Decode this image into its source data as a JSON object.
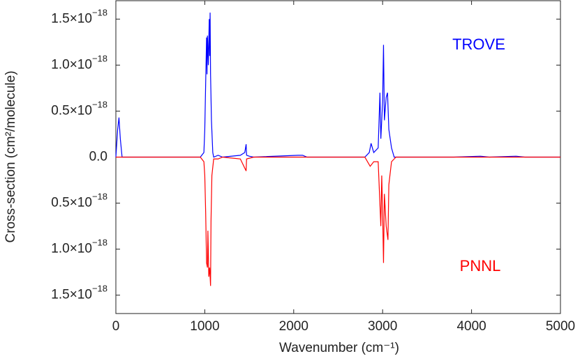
{
  "chart_data": {
    "type": "line",
    "xlabel": "Wavenumber (cm⁻¹)",
    "ylabel": "Cross-section (cm²/molecule)",
    "xlim": [
      0,
      5000
    ],
    "xticks": [
      0,
      1000,
      2000,
      3000,
      4000,
      5000
    ],
    "ylim": [
      -1.7e-18,
      1.7e-18
    ],
    "yticks": [
      {
        "value": 1.5e-18,
        "label": "1.5×10−18"
      },
      {
        "value": 1e-18,
        "label": "1.0×10−18"
      },
      {
        "value": 5e-19,
        "label": "0.5×10−18"
      },
      {
        "value": 0,
        "label": "0.0"
      },
      {
        "value": -5e-19,
        "label": "0.5×10−18"
      },
      {
        "value": -1e-18,
        "label": "1.0×10−18"
      },
      {
        "value": -1.5e-18,
        "label": "1.5×10−18"
      }
    ],
    "annotations": [
      {
        "text": "TROVE",
        "color": "#0000ff"
      },
      {
        "text": "PNNL",
        "color": "#ff0000"
      }
    ],
    "series": [
      {
        "name": "TROVE",
        "color": "#0000ff",
        "x": [
          0,
          20,
          35,
          50,
          70,
          950,
          990,
          1000,
          1010,
          1020,
          1025,
          1030,
          1040,
          1050,
          1055,
          1060,
          1065,
          1075,
          1090,
          1100,
          1150,
          1200,
          1400,
          1450,
          1465,
          1470,
          1500,
          1550,
          2050,
          2100,
          2150,
          2800,
          2850,
          2870,
          2900,
          2950,
          2970,
          2980,
          3000,
          3010,
          3020,
          3040,
          3055,
          3070,
          3100,
          3130,
          3800,
          4100,
          4200,
          4500,
          4600,
          5000
        ],
        "values": [
          0,
          3e-19,
          4.3e-19,
          2e-19,
          0,
          0,
          5e-20,
          3e-19,
          8e-19,
          1.3e-18,
          9e-19,
          1.32e-18,
          1e-18,
          1.5e-18,
          1.1e-18,
          1.57e-18,
          9e-19,
          4e-19,
          5e-20,
          0,
          2e-20,
          0,
          2e-20,
          5e-20,
          1.4e-19,
          2e-20,
          1e-20,
          0,
          2e-20,
          2e-20,
          0,
          0,
          5e-20,
          1.5e-19,
          5e-20,
          1e-19,
          7e-19,
          2e-19,
          6e-19,
          1.22e-18,
          4e-19,
          6.5e-19,
          7e-19,
          3e-19,
          1e-19,
          0,
          0,
          1e-20,
          0,
          1e-20,
          0,
          0
        ]
      },
      {
        "name": "PNNL",
        "color": "#ff0000",
        "x": [
          0,
          950,
          990,
          1000,
          1010,
          1020,
          1030,
          1035,
          1045,
          1055,
          1065,
          1070,
          1080,
          1100,
          1150,
          1200,
          1400,
          1465,
          1470,
          1550,
          2800,
          2860,
          2900,
          2950,
          2980,
          2990,
          3000,
          3010,
          3020,
          3040,
          3060,
          3070,
          3100,
          3150,
          5000
        ],
        "values": [
          0,
          0,
          -5e-20,
          -2e-19,
          -6e-19,
          -1.15e-18,
          -1.2e-18,
          -8e-19,
          -1.3e-18,
          -1.2e-18,
          -1.4e-18,
          -7e-19,
          -2e-19,
          -2e-20,
          -2e-20,
          0,
          -2e-20,
          -1.5e-19,
          -2e-20,
          0,
          0,
          -1e-19,
          -5e-20,
          -5e-20,
          -7.5e-19,
          -2e-19,
          -6e-19,
          -1.15e-18,
          -4e-19,
          -7.5e-19,
          -9e-19,
          -3e-19,
          -5e-20,
          0,
          0
        ]
      }
    ]
  }
}
